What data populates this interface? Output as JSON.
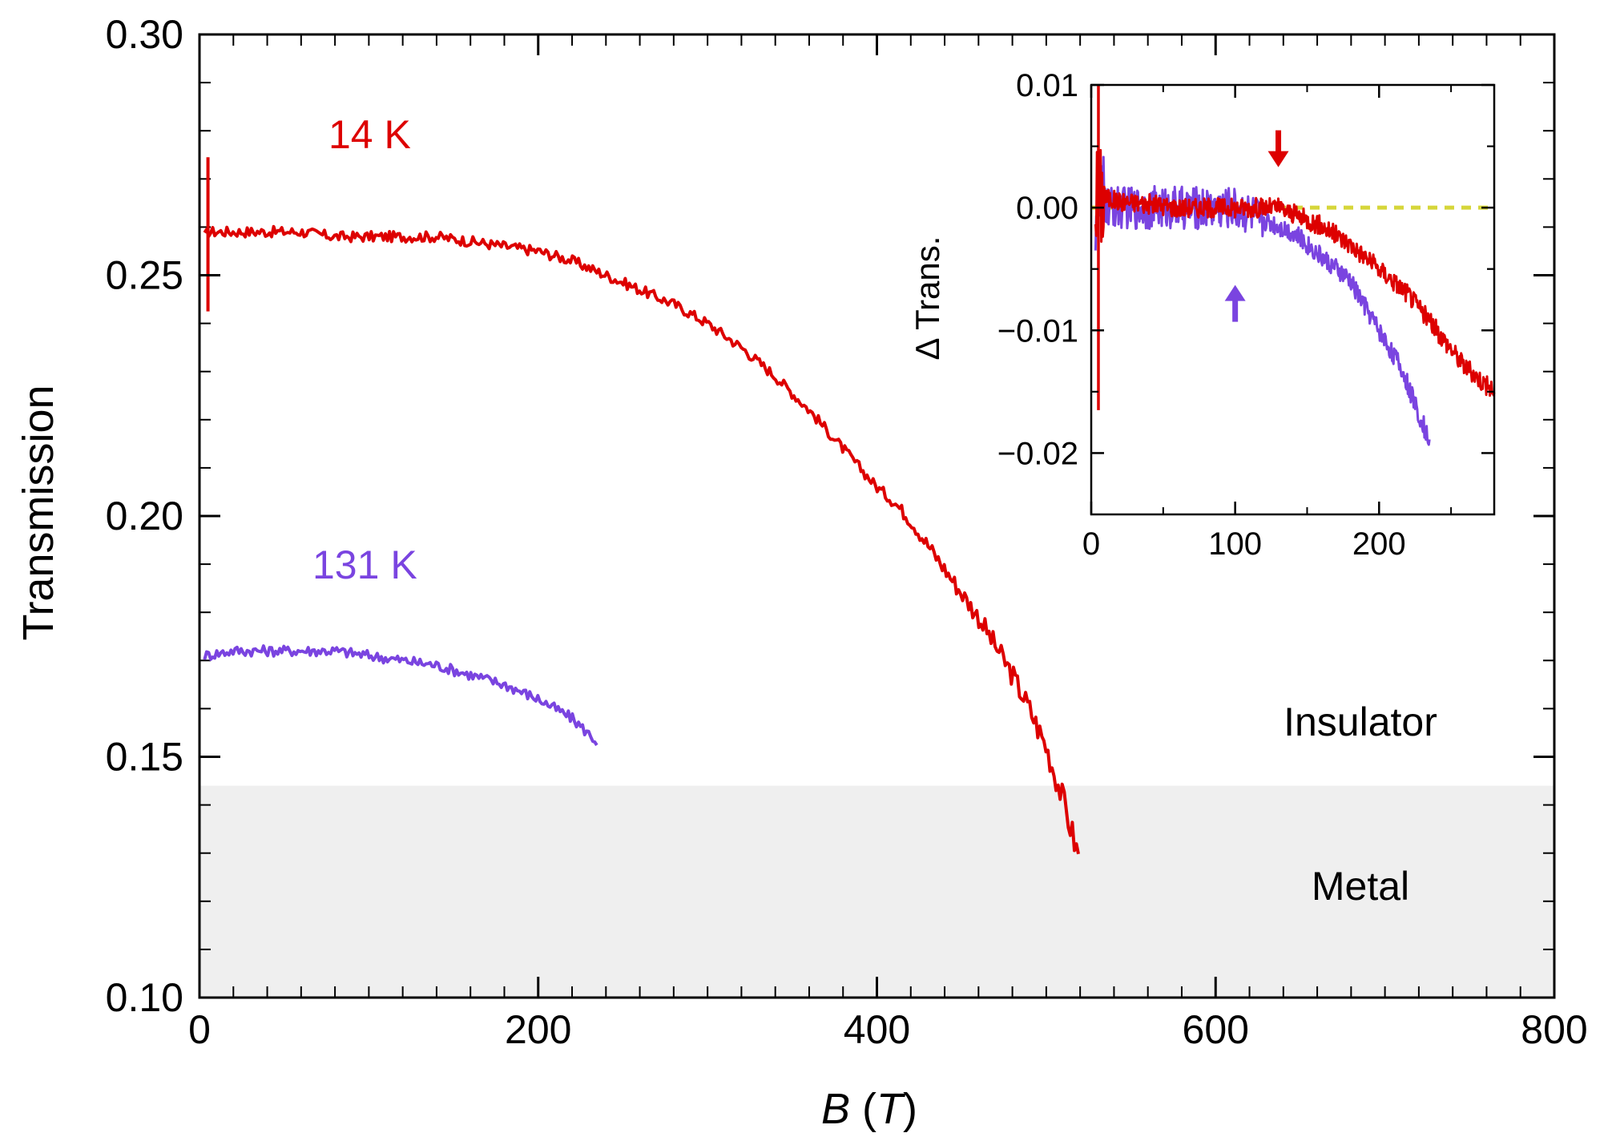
{
  "chart_data": {
    "type": "line",
    "main": {
      "xlabel_var": "B",
      "xlabel_unit": "T",
      "ylabel": "Transmission",
      "xlim": [
        0,
        800
      ],
      "ylim": [
        0.1,
        0.3
      ],
      "x_ticks": [
        {
          "value": 0,
          "label": "0"
        },
        {
          "value": 200,
          "label": "200"
        },
        {
          "value": 400,
          "label": "400"
        },
        {
          "value": 600,
          "label": "600"
        },
        {
          "value": 800,
          "label": "800"
        }
      ],
      "y_ticks": [
        {
          "value": 0.1,
          "label": "0.10"
        },
        {
          "value": 0.15,
          "label": "0.15"
        },
        {
          "value": 0.2,
          "label": "0.20"
        },
        {
          "value": 0.25,
          "label": "0.25"
        },
        {
          "value": 0.3,
          "label": "0.30"
        }
      ],
      "regions": [
        {
          "name": "Insulator",
          "from": 0.144,
          "to": 0.3,
          "color": "#ffffff"
        },
        {
          "name": "Metal",
          "from": 0.1,
          "to": 0.144,
          "color": "#efefef"
        }
      ],
      "series": [
        {
          "name": "14 K",
          "color": "#dd0000",
          "x": [
            3,
            5,
            10,
            20,
            40,
            60,
            80,
            100,
            120,
            140,
            160,
            180,
            200,
            220,
            240,
            260,
            280,
            300,
            320,
            340,
            360,
            380,
            400,
            410,
            420,
            430,
            440,
            450,
            460,
            470,
            480,
            490,
            500,
            510,
            520
          ],
          "y": [
            0.258,
            0.259,
            0.259,
            0.259,
            0.259,
            0.259,
            0.258,
            0.258,
            0.258,
            0.258,
            0.257,
            0.256,
            0.255,
            0.253,
            0.25,
            0.247,
            0.244,
            0.24,
            0.235,
            0.229,
            0.222,
            0.214,
            0.206,
            0.203,
            0.199,
            0.194,
            0.189,
            0.184,
            0.179,
            0.173,
            0.167,
            0.16,
            0.152,
            0.141,
            0.128
          ]
        },
        {
          "name": "131 K",
          "color": "#7a44e0",
          "x": [
            3,
            20,
            40,
            60,
            80,
            100,
            120,
            140,
            160,
            180,
            200,
            220,
            235
          ],
          "y": [
            0.171,
            0.172,
            0.172,
            0.172,
            0.172,
            0.171,
            0.17,
            0.169,
            0.167,
            0.165,
            0.162,
            0.158,
            0.153
          ]
        }
      ]
    },
    "inset": {
      "ylabel": "Δ Trans.",
      "xlim": [
        0,
        280
      ],
      "ylim": [
        -0.025,
        0.01
      ],
      "x_ticks": [
        {
          "value": 0,
          "label": "0"
        },
        {
          "value": 100,
          "label": "100"
        },
        {
          "value": 200,
          "label": "200"
        }
      ],
      "y_ticks": [
        {
          "value": 0.01,
          "label": "0.01"
        },
        {
          "value": 0.0,
          "label": "0.00"
        },
        {
          "value": -0.01,
          "label": "−0.01"
        },
        {
          "value": -0.02,
          "label": "−0.02"
        }
      ],
      "reference_line": {
        "y": 0.0,
        "color": "#d6d63a"
      },
      "series": [
        {
          "name": "14 K",
          "color": "#dd0000",
          "x": [
            3,
            20,
            40,
            60,
            80,
            100,
            120,
            130,
            140,
            160,
            180,
            200,
            220,
            240,
            260,
            280
          ],
          "y": [
            0.001,
            0.0005,
            0.0003,
            0.0,
            0.0,
            0.0,
            0.0,
            0.0,
            -0.0005,
            -0.0015,
            -0.003,
            -0.005,
            -0.007,
            -0.01,
            -0.013,
            -0.015
          ]
        },
        {
          "name": "131 K",
          "color": "#7a44e0",
          "x": [
            3,
            20,
            40,
            60,
            80,
            100,
            120,
            140,
            160,
            180,
            200,
            215,
            225,
            235
          ],
          "y": [
            0.0,
            0.0,
            0.0,
            0.0,
            0.0,
            0.0,
            -0.001,
            -0.002,
            -0.004,
            -0.006,
            -0.01,
            -0.013,
            -0.016,
            -0.019
          ]
        }
      ],
      "arrows": [
        {
          "series": "14 K",
          "x": 130,
          "direction": "down",
          "color": "#dd0000"
        },
        {
          "series": "131 K",
          "x": 100,
          "direction": "up",
          "color": "#7a44e0"
        }
      ]
    }
  }
}
